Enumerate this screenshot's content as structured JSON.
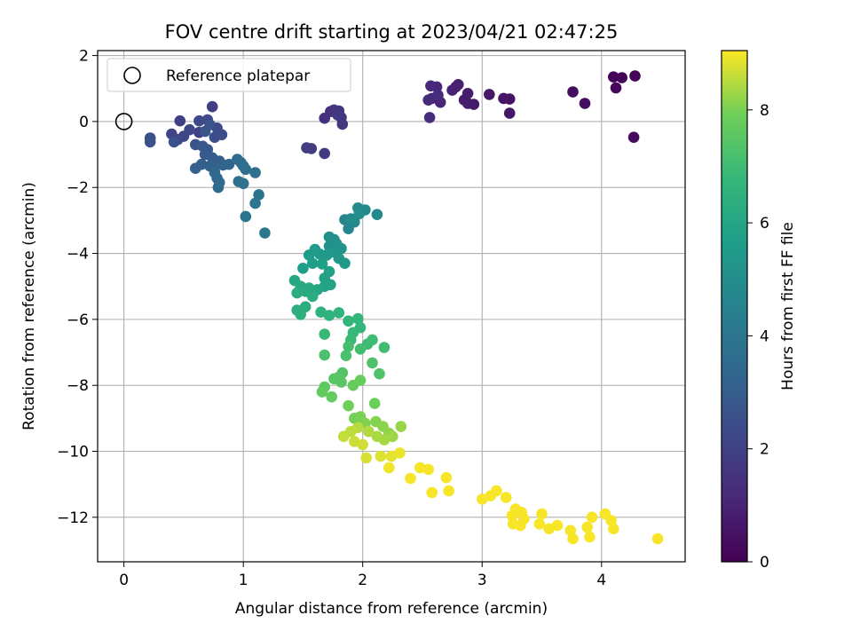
{
  "chart_data": {
    "type": "scatter",
    "title": "FOV centre drift starting at 2023/04/21 02:47:25",
    "xlabel": "Angular distance from reference (arcmin)",
    "ylabel": "Rotation from reference (arcmin)",
    "xlim": [
      -0.22,
      4.7
    ],
    "ylim": [
      -13.35,
      2.15
    ],
    "x_ticks": [
      0,
      1,
      2,
      3,
      4
    ],
    "x_tick_labels": [
      "0",
      "1",
      "2",
      "3",
      "4"
    ],
    "y_ticks": [
      2,
      0,
      -2,
      -4,
      -6,
      -8,
      -10,
      -12
    ],
    "y_tick_labels": [
      "2",
      "0",
      "−2",
      "−4",
      "−6",
      "−8",
      "−10",
      "−12"
    ],
    "grid": true,
    "legend": {
      "placement": "upper-left",
      "entries": [
        "Reference platepar"
      ]
    },
    "reference_point": {
      "x": 0,
      "y": 0
    },
    "colorbar": {
      "label": "Hours from first FF file",
      "range": [
        0,
        9.05
      ],
      "ticks": [
        0,
        2,
        4,
        6,
        8
      ],
      "tick_labels": [
        "0",
        "2",
        "4",
        "6",
        "8"
      ],
      "colormap": "viridis"
    },
    "columns": [
      "x",
      "y",
      "hours"
    ],
    "points": [
      [
        4.1,
        1.35,
        0.05
      ],
      [
        4.17,
        1.33,
        0.1
      ],
      [
        4.28,
        1.38,
        0.15
      ],
      [
        4.12,
        1.02,
        0.2
      ],
      [
        4.27,
        -0.48,
        0.25
      ],
      [
        3.76,
        0.9,
        0.35
      ],
      [
        3.86,
        0.55,
        0.4
      ],
      [
        3.23,
        0.68,
        0.5
      ],
      [
        3.18,
        0.7,
        0.55
      ],
      [
        3.23,
        0.25,
        0.6
      ],
      [
        3.06,
        0.82,
        0.65
      ],
      [
        2.93,
        0.52,
        0.7
      ],
      [
        2.88,
        0.55,
        0.75
      ],
      [
        2.85,
        0.65,
        0.8
      ],
      [
        2.88,
        0.85,
        0.85
      ],
      [
        2.78,
        1.05,
        0.9
      ],
      [
        2.8,
        1.12,
        0.95
      ],
      [
        2.75,
        0.95,
        1.0
      ],
      [
        2.65,
        0.58,
        1.05
      ],
      [
        2.62,
        1.05,
        1.1
      ],
      [
        2.58,
        0.7,
        1.15
      ],
      [
        2.55,
        0.65,
        1.2
      ],
      [
        2.57,
        1.08,
        1.25
      ],
      [
        2.56,
        0.12,
        1.3
      ],
      [
        2.63,
        0.8,
        1.35
      ],
      [
        1.68,
        0.1,
        1.4
      ],
      [
        1.73,
        0.3,
        1.45
      ],
      [
        1.76,
        0.35,
        1.5
      ],
      [
        1.8,
        0.32,
        1.55
      ],
      [
        1.82,
        0.12,
        1.6
      ],
      [
        1.83,
        -0.08,
        1.65
      ],
      [
        1.79,
        0.2,
        1.7
      ],
      [
        1.68,
        -0.97,
        1.75
      ],
      [
        1.53,
        -0.8,
        1.8
      ],
      [
        1.57,
        -0.82,
        1.85
      ],
      [
        0.74,
        0.45,
        1.9
      ],
      [
        0.63,
        -0.33,
        1.95
      ],
      [
        0.47,
        0.02,
        2.0
      ],
      [
        0.4,
        -0.38,
        2.05
      ],
      [
        0.45,
        -0.55,
        2.1
      ],
      [
        0.5,
        -0.45,
        2.15
      ],
      [
        0.55,
        -0.25,
        2.2
      ],
      [
        0.63,
        0.02,
        2.25
      ],
      [
        0.7,
        0.05,
        2.3
      ],
      [
        0.78,
        -0.2,
        2.35
      ],
      [
        0.82,
        -0.4,
        2.4
      ],
      [
        0.76,
        -0.48,
        2.45
      ],
      [
        0.22,
        -0.5,
        2.5
      ],
      [
        0.22,
        -0.62,
        2.55
      ],
      [
        0.42,
        -0.62,
        2.6
      ],
      [
        0.6,
        -0.7,
        2.65
      ],
      [
        0.72,
        -0.1,
        2.7
      ],
      [
        0.68,
        -0.3,
        2.75
      ],
      [
        0.66,
        -0.75,
        2.8
      ],
      [
        0.7,
        -0.85,
        2.85
      ],
      [
        0.68,
        -1.0,
        2.9
      ],
      [
        0.74,
        -1.1,
        2.95
      ],
      [
        0.8,
        -1.2,
        3.0
      ],
      [
        0.65,
        -1.3,
        3.05
      ],
      [
        0.72,
        -1.35,
        3.1
      ],
      [
        0.6,
        -1.42,
        3.15
      ],
      [
        0.76,
        -1.4,
        3.2
      ],
      [
        0.83,
        -1.32,
        3.25
      ],
      [
        0.88,
        -1.3,
        3.3
      ],
      [
        0.76,
        -1.55,
        3.35
      ],
      [
        0.78,
        -1.72,
        3.4
      ],
      [
        0.8,
        -1.85,
        3.45
      ],
      [
        0.79,
        -2.0,
        3.5
      ],
      [
        0.95,
        -1.15,
        3.55
      ],
      [
        0.98,
        -1.25,
        3.6
      ],
      [
        1.0,
        -1.35,
        3.65
      ],
      [
        1.02,
        -1.45,
        3.7
      ],
      [
        1.1,
        -1.55,
        3.75
      ],
      [
        0.96,
        -1.82,
        3.8
      ],
      [
        1.0,
        -1.88,
        3.85
      ],
      [
        1.13,
        -2.22,
        3.9
      ],
      [
        1.1,
        -2.48,
        3.95
      ],
      [
        1.02,
        -2.88,
        4.0
      ],
      [
        1.18,
        -3.38,
        4.05
      ],
      [
        1.85,
        -2.98,
        4.65
      ],
      [
        1.88,
        -3.25,
        4.7
      ],
      [
        1.93,
        -3.05,
        4.75
      ],
      [
        2.12,
        -2.82,
        4.8
      ],
      [
        1.96,
        -2.62,
        4.85
      ],
      [
        2.02,
        -2.68,
        4.9
      ],
      [
        1.9,
        -2.95,
        4.95
      ],
      [
        1.97,
        -2.8,
        5.0
      ],
      [
        1.72,
        -3.5,
        5.05
      ],
      [
        1.76,
        -3.58,
        5.1
      ],
      [
        1.72,
        -3.78,
        5.15
      ],
      [
        1.78,
        -3.7,
        5.2
      ],
      [
        1.82,
        -3.85,
        5.25
      ],
      [
        1.75,
        -3.95,
        5.3
      ],
      [
        1.8,
        -4.15,
        5.35
      ],
      [
        1.85,
        -4.3,
        5.4
      ],
      [
        1.7,
        -4.05,
        5.45
      ],
      [
        1.64,
        -4.02,
        5.5
      ],
      [
        1.6,
        -3.88,
        5.55
      ],
      [
        1.55,
        -4.05,
        5.6
      ],
      [
        1.58,
        -4.3,
        5.65
      ],
      [
        1.5,
        -4.45,
        5.7
      ],
      [
        1.66,
        -4.32,
        5.75
      ],
      [
        1.72,
        -4.55,
        5.8
      ],
      [
        1.68,
        -4.75,
        5.85
      ],
      [
        1.73,
        -4.95,
        5.9
      ],
      [
        1.68,
        -5.0,
        5.95
      ],
      [
        1.62,
        -5.1,
        6.0
      ],
      [
        1.43,
        -4.82,
        6.05
      ],
      [
        1.48,
        -5.0,
        6.1
      ],
      [
        1.52,
        -5.15,
        6.15
      ],
      [
        1.55,
        -5.05,
        6.2
      ],
      [
        1.58,
        -5.3,
        6.25
      ],
      [
        1.45,
        -5.2,
        6.3
      ],
      [
        1.52,
        -5.62,
        6.35
      ],
      [
        1.45,
        -5.72,
        6.4
      ],
      [
        1.48,
        -5.85,
        6.45
      ],
      [
        1.65,
        -5.78,
        6.5
      ],
      [
        1.72,
        -5.88,
        6.55
      ],
      [
        1.8,
        -5.8,
        6.6
      ],
      [
        1.88,
        -6.05,
        6.65
      ],
      [
        1.96,
        -5.98,
        6.7
      ],
      [
        1.98,
        -6.25,
        6.75
      ],
      [
        1.92,
        -6.4,
        6.8
      ],
      [
        1.68,
        -6.45,
        6.85
      ],
      [
        1.9,
        -6.62,
        6.9
      ],
      [
        2.04,
        -6.75,
        6.95
      ],
      [
        2.08,
        -6.62,
        7.0
      ],
      [
        2.18,
        -6.85,
        7.05
      ],
      [
        1.98,
        -6.9,
        7.1
      ],
      [
        1.88,
        -6.82,
        7.15
      ],
      [
        1.86,
        -7.1,
        7.2
      ],
      [
        1.68,
        -7.08,
        7.25
      ],
      [
        2.08,
        -7.32,
        7.3
      ],
      [
        2.14,
        -7.65,
        7.35
      ],
      [
        1.83,
        -7.62,
        7.4
      ],
      [
        1.8,
        -7.75,
        7.45
      ],
      [
        1.82,
        -7.9,
        7.5
      ],
      [
        1.76,
        -7.8,
        7.55
      ],
      [
        1.68,
        -8.05,
        7.6
      ],
      [
        1.66,
        -8.2,
        7.65
      ],
      [
        1.74,
        -8.35,
        7.7
      ],
      [
        1.92,
        -8.0,
        7.75
      ],
      [
        1.98,
        -7.85,
        7.8
      ],
      [
        2.1,
        -8.55,
        7.85
      ],
      [
        1.88,
        -8.62,
        7.9
      ],
      [
        1.93,
        -9.0,
        7.95
      ],
      [
        1.98,
        -8.95,
        8.0
      ],
      [
        2.02,
        -9.15,
        8.05
      ],
      [
        2.11,
        -9.1,
        8.1
      ],
      [
        2.17,
        -9.25,
        8.15
      ],
      [
        2.22,
        -9.45,
        8.2
      ],
      [
        2.32,
        -9.25,
        8.25
      ],
      [
        2.25,
        -9.55,
        8.3
      ],
      [
        2.18,
        -9.65,
        8.35
      ],
      [
        2.12,
        -9.55,
        8.4
      ],
      [
        2.05,
        -9.4,
        8.45
      ],
      [
        1.96,
        -9.28,
        8.5
      ],
      [
        1.9,
        -9.4,
        8.55
      ],
      [
        1.84,
        -9.55,
        8.6
      ],
      [
        1.93,
        -9.7,
        8.65
      ],
      [
        2.0,
        -9.8,
        8.7
      ],
      [
        2.03,
        -10.2,
        8.75
      ],
      [
        2.15,
        -10.15,
        8.8
      ],
      [
        2.24,
        -10.15,
        8.85
      ],
      [
        2.31,
        -10.05,
        8.9
      ],
      [
        2.22,
        -10.5,
        8.95
      ],
      [
        2.4,
        -10.82,
        9.0
      ],
      [
        2.48,
        -10.5,
        9.0
      ],
      [
        2.55,
        -10.55,
        9.0
      ],
      [
        2.7,
        -10.8,
        9.0
      ],
      [
        2.72,
        -11.2,
        9.0
      ],
      [
        2.58,
        -11.25,
        9.0
      ],
      [
        3.0,
        -11.45,
        9.0
      ],
      [
        3.07,
        -11.35,
        9.0
      ],
      [
        3.12,
        -11.2,
        9.0
      ],
      [
        3.2,
        -11.4,
        9.0
      ],
      [
        3.25,
        -11.95,
        9.0
      ],
      [
        3.28,
        -11.75,
        9.0
      ],
      [
        3.33,
        -11.85,
        9.0
      ],
      [
        3.35,
        -12.05,
        9.0
      ],
      [
        3.26,
        -12.2,
        9.0
      ],
      [
        3.32,
        -12.25,
        9.0
      ],
      [
        3.48,
        -12.2,
        9.0
      ],
      [
        3.5,
        -11.9,
        9.0
      ],
      [
        3.56,
        -12.35,
        9.0
      ],
      [
        3.63,
        -12.25,
        9.0
      ],
      [
        3.74,
        -12.4,
        9.0
      ],
      [
        3.76,
        -12.65,
        9.0
      ],
      [
        3.88,
        -12.3,
        9.0
      ],
      [
        3.9,
        -12.6,
        9.0
      ],
      [
        3.92,
        -12.0,
        9.0
      ],
      [
        4.03,
        -11.9,
        9.0
      ],
      [
        4.08,
        -12.1,
        9.0
      ],
      [
        4.1,
        -12.35,
        9.0
      ],
      [
        4.47,
        -12.65,
        9.0
      ]
    ]
  }
}
